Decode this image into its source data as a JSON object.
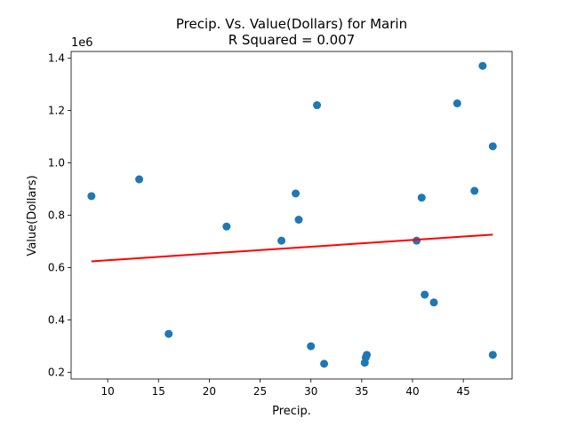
{
  "chart_data": {
    "type": "scatter",
    "title": "Precip. Vs. Value(Dollars) for Marin",
    "subtitle": "R Squared =  0.007",
    "xlabel": "Precip.",
    "ylabel": "Value(Dollars)",
    "y_offset_label": "1e6",
    "xlim": [
      6.4,
      49.8
    ],
    "ylim": [
      0.175,
      1.425
    ],
    "x_ticks": [
      10,
      15,
      20,
      25,
      30,
      35,
      40,
      45
    ],
    "y_ticks": [
      0.2,
      0.4,
      0.6,
      0.8,
      1.0,
      1.2,
      1.4
    ],
    "x_tick_labels": [
      "10",
      "15",
      "20",
      "25",
      "30",
      "35",
      "40",
      "45"
    ],
    "y_tick_labels": [
      "0.2",
      "0.4",
      "0.6",
      "0.8",
      "1.0",
      "1.2",
      "1.4"
    ],
    "series": [
      {
        "color": "#1f77b4",
        "points": [
          {
            "x": 8.4,
            "y": 0.873
          },
          {
            "x": 13.1,
            "y": 0.937
          },
          {
            "x": 16.0,
            "y": 0.347
          },
          {
            "x": 21.7,
            "y": 0.757
          },
          {
            "x": 27.1,
            "y": 0.703
          },
          {
            "x": 28.5,
            "y": 0.883
          },
          {
            "x": 28.8,
            "y": 0.783
          },
          {
            "x": 30.0,
            "y": 0.3
          },
          {
            "x": 30.6,
            "y": 1.22
          },
          {
            "x": 31.3,
            "y": 0.233
          },
          {
            "x": 35.3,
            "y": 0.237
          },
          {
            "x": 35.4,
            "y": 0.257
          },
          {
            "x": 35.5,
            "y": 0.267
          },
          {
            "x": 40.4,
            "y": 0.703
          },
          {
            "x": 40.9,
            "y": 0.867
          },
          {
            "x": 41.2,
            "y": 0.497
          },
          {
            "x": 42.1,
            "y": 0.467
          },
          {
            "x": 44.4,
            "y": 1.227
          },
          {
            "x": 46.1,
            "y": 0.893
          },
          {
            "x": 46.9,
            "y": 1.37
          },
          {
            "x": 47.9,
            "y": 0.267
          },
          {
            "x": 47.9,
            "y": 1.063
          }
        ]
      }
    ],
    "trendline": {
      "color": "#ff0000",
      "x": [
        8.4,
        47.9
      ],
      "y": [
        0.624,
        0.726
      ]
    }
  }
}
